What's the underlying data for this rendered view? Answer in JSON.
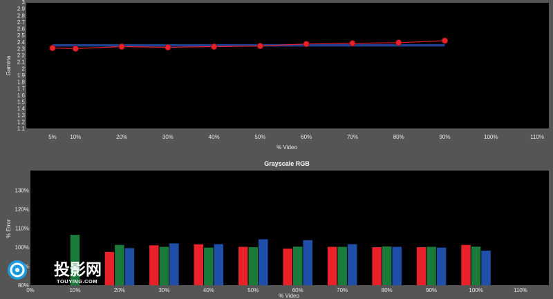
{
  "chart_data": [
    {
      "type": "line",
      "title": "",
      "xlabel": "% Video",
      "ylabel": "Gamma",
      "ylim": [
        1.1,
        3
      ],
      "y_ticks": [
        "1.1",
        "1.2",
        "1.3",
        "1.4",
        "1.5",
        "1.6",
        "1.7",
        "1.8",
        "1.9",
        "2",
        "2.1",
        "2.2",
        "2.3",
        "2.4",
        "2.5",
        "2.6",
        "2.7",
        "2.8",
        "2.9",
        "3"
      ],
      "x_ticks": [
        "5%",
        "10%",
        "20%",
        "30%",
        "40%",
        "50%",
        "60%",
        "70%",
        "80%",
        "90%",
        "100%",
        "110%"
      ],
      "x_tick_values": [
        5,
        10,
        20,
        30,
        40,
        50,
        60,
        70,
        80,
        90,
        100,
        110
      ],
      "series": [
        {
          "style": "reference",
          "color": "#1f3f8f",
          "x": [
            5,
            90
          ],
          "y": [
            2.35,
            2.35
          ]
        },
        {
          "style": "measured",
          "color": "#e8212a",
          "x": [
            5,
            10,
            20,
            30,
            40,
            50,
            60,
            70,
            80,
            90
          ],
          "y": [
            2.31,
            2.3,
            2.33,
            2.32,
            2.33,
            2.34,
            2.37,
            2.38,
            2.39,
            2.42
          ]
        }
      ],
      "grid": false
    },
    {
      "type": "bar",
      "title": "Grayscale RGB",
      "xlabel": "% Video",
      "ylabel": "% Error",
      "ylim": [
        80,
        140
      ],
      "y_ticks": [
        "80%",
        "90%",
        "100%",
        "110%",
        "120%",
        "130%"
      ],
      "x_ticks": [
        "0%",
        "10%",
        "20%",
        "30%",
        "40%",
        "50%",
        "60%",
        "70%",
        "80%",
        "90%",
        "100%",
        "110%"
      ],
      "categories": [
        "10%",
        "20%",
        "30%",
        "40%",
        "50%",
        "60%",
        "70%",
        "80%",
        "90%",
        "100%"
      ],
      "series": [
        {
          "color": "#e8212a",
          "values": [
            null,
            97.5,
            101.0,
            101.5,
            100.2,
            99.3,
            100.2,
            100.0,
            100.0,
            101.2
          ]
        },
        {
          "color": "#1a7a3a",
          "values": [
            106.5,
            101.2,
            100.2,
            99.8,
            100.0,
            100.3,
            100.2,
            100.4,
            100.2,
            100.3
          ]
        },
        {
          "color": "#1f4fa8",
          "values": [
            null,
            99.5,
            102.0,
            101.6,
            104.2,
            103.7,
            101.6,
            100.2,
            99.8,
            98.2
          ]
        }
      ],
      "grid": false
    }
  ],
  "watermark": {
    "main": "投影网",
    "sub": "TOUYING.COM"
  }
}
